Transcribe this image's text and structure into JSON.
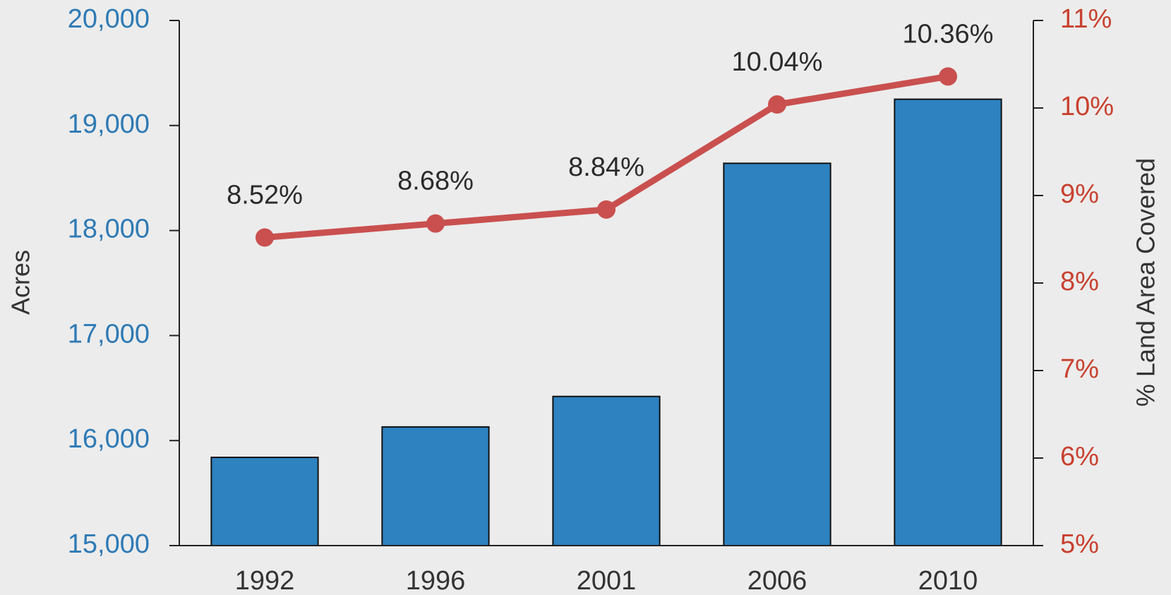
{
  "chart_data": {
    "type": "bar",
    "categories": [
      "1992",
      "1996",
      "2001",
      "2006",
      "2010"
    ],
    "ylabel": "Acres",
    "y2label": "% Land Area Covered",
    "ylim": [
      15000,
      20000
    ],
    "yticks": [
      {
        "value": 15000,
        "label": "15,000"
      },
      {
        "value": 16000,
        "label": "16,000"
      },
      {
        "value": 17000,
        "label": "17,000"
      },
      {
        "value": 18000,
        "label": "18,000"
      },
      {
        "value": 19000,
        "label": "19,000"
      },
      {
        "value": 20000,
        "label": "20,000"
      }
    ],
    "y2lim": [
      5,
      11
    ],
    "y2ticks": [
      {
        "value": 5,
        "label": "5%"
      },
      {
        "value": 6,
        "label": "6%"
      },
      {
        "value": 7,
        "label": "7%"
      },
      {
        "value": 8,
        "label": "8%"
      },
      {
        "value": 9,
        "label": "9%"
      },
      {
        "value": 10,
        "label": "10%"
      },
      {
        "value": 11,
        "label": "11%"
      }
    ],
    "series": [
      {
        "type": "bar",
        "color": "#2e82c0",
        "values": [
          15840,
          16130,
          16420,
          18640,
          19250
        ]
      },
      {
        "type": "line",
        "axis": "y2",
        "color": "#c9504f",
        "values": [
          8.52,
          8.68,
          8.84,
          10.04,
          10.36
        ],
        "value_labels": [
          "8.52%",
          "8.68%",
          "8.84%",
          "10.04%",
          "10.36%"
        ]
      }
    ]
  }
}
